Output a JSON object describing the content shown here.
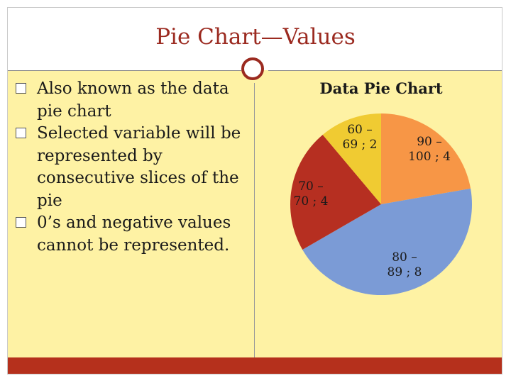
{
  "slide": {
    "title": "Pie Chart—Values",
    "bullets": [
      {
        "text": "Also known as the data pie chart"
      },
      {
        "text": "Selected variable will be represented by consecutive slices of the pie"
      },
      {
        "text": "0’s and negative values cannot be represented."
      }
    ]
  },
  "colors": {
    "title": "#9b2a20",
    "panel": "#fef2a4",
    "footer": "#b5301c"
  },
  "chart_data": {
    "type": "pie",
    "title": "Data Pie Chart",
    "slices": [
      {
        "label": "90 – 100 ; 4",
        "lines": [
          "90 –",
          "100 ; 4"
        ],
        "value": 4,
        "color": "#f79646"
      },
      {
        "label": "80 – 89 ; 8",
        "lines": [
          "80 –",
          "89 ; 8"
        ],
        "value": 8,
        "color": "#7b9bd6"
      },
      {
        "label": "70 – 70 ; 4",
        "lines": [
          "70 –",
          "70 ; 4"
        ],
        "value": 4,
        "color": "#b62f21"
      },
      {
        "label": "60 – 69 ; 2",
        "lines": [
          "60 –",
          "69 ; 2"
        ],
        "value": 2,
        "color": "#f0cb32"
      }
    ]
  }
}
